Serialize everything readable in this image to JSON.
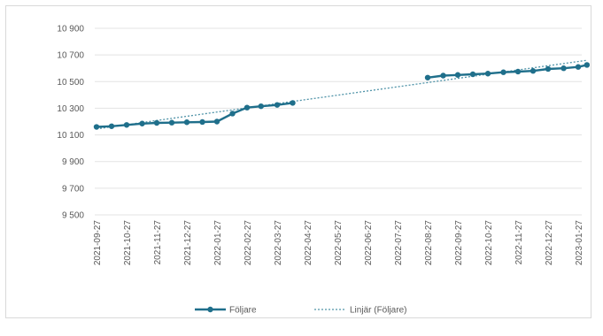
{
  "chart_data": {
    "type": "line",
    "title": "",
    "xlabel": "",
    "ylabel": "",
    "ylim": [
      9500,
      10900
    ],
    "y_ticks": [
      9500,
      9700,
      9900,
      10100,
      10300,
      10500,
      10700,
      10900
    ],
    "y_tick_labels": [
      "9 500",
      "9 700",
      "9 900",
      "10 100",
      "10 300",
      "10 500",
      "10 700",
      "10 900"
    ],
    "x_tick_labels": [
      "2021-09-27",
      "2021-10-27",
      "2021-11-27",
      "2021-12-27",
      "2022-01-27",
      "2022-02-27",
      "2022-03-27",
      "2022-04-27",
      "2022-05-27",
      "2022-06-27",
      "2022-07-27",
      "2022-08-27",
      "2022-09-27",
      "2022-10-27",
      "2022-11-27",
      "2022-12-27",
      "2023-01-27"
    ],
    "grid": true,
    "legend_position": "bottom",
    "series": [
      {
        "name": "Följare",
        "color": "#1f6f8b",
        "style": "solid-with-markers",
        "segments": [
          [
            {
              "x": "2021-09-27",
              "y": 10160
            },
            {
              "x": "2021-10-12",
              "y": 10165
            },
            {
              "x": "2021-10-27",
              "y": 10175
            },
            {
              "x": "2021-11-12",
              "y": 10185
            },
            {
              "x": "2021-11-27",
              "y": 10190
            },
            {
              "x": "2021-12-12",
              "y": 10192
            },
            {
              "x": "2021-12-27",
              "y": 10195
            },
            {
              "x": "2022-01-12",
              "y": 10197
            },
            {
              "x": "2022-01-27",
              "y": 10200
            },
            {
              "x": "2022-02-12",
              "y": 10260
            },
            {
              "x": "2022-02-27",
              "y": 10305
            },
            {
              "x": "2022-03-12",
              "y": 10315
            },
            {
              "x": "2022-03-27",
              "y": 10325
            },
            {
              "x": "2022-04-12",
              "y": 10340
            }
          ],
          [
            {
              "x": "2022-08-27",
              "y": 10530
            },
            {
              "x": "2022-09-12",
              "y": 10545
            },
            {
              "x": "2022-09-27",
              "y": 10550
            },
            {
              "x": "2022-10-12",
              "y": 10555
            },
            {
              "x": "2022-10-27",
              "y": 10560
            },
            {
              "x": "2022-11-12",
              "y": 10570
            },
            {
              "x": "2022-11-27",
              "y": 10575
            },
            {
              "x": "2022-12-12",
              "y": 10580
            },
            {
              "x": "2022-12-27",
              "y": 10595
            },
            {
              "x": "2023-01-12",
              "y": 10600
            },
            {
              "x": "2023-01-27",
              "y": 10610
            },
            {
              "x": "2023-02-05",
              "y": 10625
            }
          ]
        ]
      },
      {
        "name": "Linjär (Följare)",
        "color": "#4f93a8",
        "style": "dotted",
        "points": [
          {
            "x": "2021-09-27",
            "y": 10145
          },
          {
            "x": "2023-02-05",
            "y": 10660
          }
        ]
      }
    ]
  }
}
